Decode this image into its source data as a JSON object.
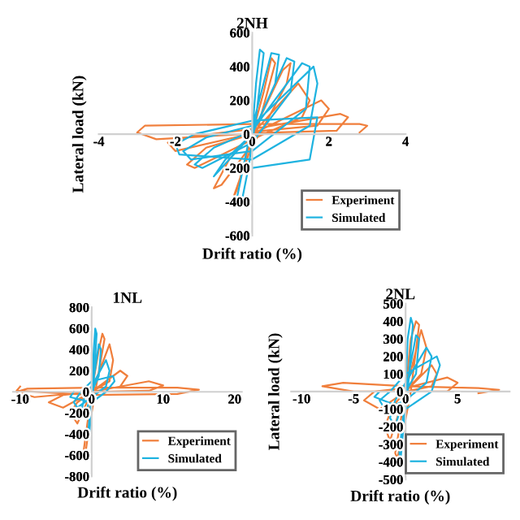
{
  "chart_data": [
    {
      "type": "line",
      "title": "2NH",
      "xlabel": "Drift ratio (%)",
      "ylabel": "Lateral load (kN)",
      "xlim": [
        -4,
        4
      ],
      "ylim": [
        -600,
        600
      ],
      "xticks": [
        -4,
        -2,
        0,
        2,
        4
      ],
      "yticks": [
        -600,
        -400,
        -200,
        0,
        200,
        400,
        600
      ],
      "legend": "bottom right",
      "series": [
        {
          "name": "Experiment",
          "color": "#f07f3c",
          "x": [
            0,
            0.3,
            0.5,
            0.6,
            0.1,
            -0.3,
            -0.5,
            -0.4,
            0,
            0.8,
            1.0,
            0.9,
            0.2,
            -0.8,
            -1.0,
            -0.6,
            0,
            1.2,
            1.5,
            1.3,
            0.3,
            -1.5,
            -1.7,
            -1.2,
            0,
            1.8,
            2.0,
            1.7,
            0.3,
            -2.0,
            -2.2,
            -1.5,
            0,
            2.3,
            2.5,
            2.2,
            0.5,
            -2.5,
            -3.0,
            -2.8,
            0,
            2.8,
            3.0,
            2.8
          ],
          "values": [
            0,
            250,
            450,
            420,
            0,
            -250,
            -380,
            -330,
            0,
            380,
            420,
            300,
            0,
            -300,
            -320,
            -150,
            0,
            300,
            200,
            100,
            0,
            -200,
            -180,
            -80,
            0,
            200,
            150,
            50,
            20,
            -100,
            -50,
            -10,
            30,
            120,
            100,
            20,
            10,
            -30,
            10,
            50,
            60,
            60,
            50,
            10
          ]
        },
        {
          "name": "Simulated",
          "color": "#1fb3e0",
          "x": [
            0,
            0.1,
            0.2,
            0.3,
            0.1,
            -0.1,
            -0.3,
            -0.4,
            -0.1,
            0.5,
            0.7,
            0.6,
            0,
            -0.8,
            -1.0,
            -0.7,
            0,
            0.9,
            1.1,
            1.0,
            0,
            -1.3,
            -1.5,
            -1.0,
            0,
            1.3,
            1.5,
            1.4,
            0,
            -1.6,
            -1.8,
            -1.2,
            0,
            1.6,
            1.7,
            1.5,
            0,
            -1.9,
            -2.0,
            -1.5,
            0,
            1.7,
            1.5,
            0
          ],
          "values": [
            0,
            300,
            500,
            480,
            100,
            -200,
            -430,
            -380,
            -50,
            480,
            470,
            300,
            0,
            -200,
            -250,
            -150,
            0,
            450,
            430,
            250,
            -50,
            -200,
            -180,
            -80,
            20,
            420,
            400,
            150,
            -100,
            -150,
            -100,
            -20,
            50,
            400,
            300,
            50,
            -150,
            -120,
            -60,
            0,
            80,
            100,
            -150,
            -200
          ]
        }
      ]
    },
    {
      "type": "line",
      "title": "1NL",
      "xlabel": "Drift ratio (%)",
      "xlim": [
        -11,
        21
      ],
      "ylim": [
        -800,
        800
      ],
      "xticks": [
        -10,
        0,
        10,
        20
      ],
      "yticks": [
        -800,
        -600,
        -400,
        -200,
        0,
        200,
        400,
        600,
        800
      ],
      "legend": "bottom right",
      "series": [
        {
          "name": "Experiment",
          "color": "#f07f3c",
          "x": [
            0,
            1,
            1.5,
            1.8,
            0.5,
            -0.5,
            -1,
            -1.2,
            0,
            2.5,
            3,
            2.5,
            0,
            -2,
            -3,
            -2,
            0,
            4,
            5,
            4,
            0,
            -4,
            -6,
            -4,
            0,
            8,
            10,
            8,
            0,
            -8,
            -10.5,
            -9,
            0,
            12,
            15,
            12,
            0,
            -10.5,
            -10
          ],
          "values": [
            0,
            400,
            550,
            500,
            0,
            -400,
            -650,
            -600,
            0,
            450,
            300,
            100,
            0,
            -300,
            -200,
            -100,
            0,
            200,
            150,
            50,
            0,
            -150,
            -100,
            -30,
            0,
            100,
            60,
            10,
            0,
            -50,
            0,
            30,
            40,
            40,
            20,
            -20,
            -30,
            10,
            50
          ]
        },
        {
          "name": "Simulated",
          "color": "#1fb3e0",
          "x": [
            0,
            0.3,
            0.5,
            0.7,
            0.2,
            -0.2,
            -0.4,
            -0.5,
            0,
            1,
            1.3,
            1,
            0,
            -1,
            -1.5,
            -1,
            0,
            2,
            2.5,
            2,
            0,
            -2,
            -2.5,
            -1.5,
            0,
            3,
            3.2,
            2,
            0,
            -3,
            -2.5
          ],
          "values": [
            0,
            400,
            600,
            550,
            0,
            -300,
            -450,
            -400,
            0,
            450,
            400,
            150,
            0,
            -250,
            -200,
            -50,
            50,
            300,
            200,
            50,
            -50,
            -150,
            -100,
            0,
            100,
            150,
            100,
            0,
            -100,
            -50,
            0
          ]
        }
      ]
    },
    {
      "type": "line",
      "title": "2NL",
      "xlabel": "Drift ratio (%)",
      "ylabel": "Lateral load (kN)",
      "xlim": [
        -11,
        10
      ],
      "ylim": [
        -500,
        500
      ],
      "xticks": [
        -10,
        -5,
        0,
        5
      ],
      "yticks": [
        -500,
        -400,
        -300,
        -200,
        -100,
        0,
        100,
        200,
        300,
        400,
        500
      ],
      "legend": "bottom right",
      "series": [
        {
          "name": "Experiment",
          "color": "#f07f3c",
          "x": [
            0,
            0.5,
            1,
            1.3,
            0.5,
            -0.3,
            -0.8,
            -1,
            0,
            1.5,
            2,
            1.5,
            0,
            -1.5,
            -2,
            -1.2,
            0,
            2.5,
            3,
            2.5,
            0,
            -2.5,
            -4,
            -3,
            0,
            4,
            5,
            4,
            0,
            -5,
            -8,
            -6,
            0,
            7,
            9,
            7
          ],
          "values": [
            0,
            300,
            400,
            380,
            0,
            -250,
            -380,
            -350,
            0,
            350,
            250,
            100,
            0,
            -280,
            -200,
            -80,
            0,
            150,
            100,
            30,
            0,
            -100,
            -50,
            0,
            20,
            80,
            50,
            0,
            0,
            0,
            30,
            50,
            30,
            20,
            10,
            -10
          ]
        },
        {
          "name": "Simulated",
          "color": "#1fb3e0",
          "x": [
            0,
            0.2,
            0.5,
            0.7,
            0.2,
            -0.2,
            -0.5,
            -0.6,
            0,
            1,
            1.3,
            1,
            0,
            -1,
            -1.5,
            -1,
            0,
            2,
            2.5,
            2,
            0,
            -2,
            -2.5,
            -1.5,
            0,
            3,
            3.3,
            2.5,
            0,
            -3,
            -2.5
          ],
          "values": [
            0,
            300,
            420,
            380,
            0,
            -200,
            -400,
            -350,
            0,
            320,
            300,
            100,
            0,
            -200,
            -150,
            -50,
            50,
            250,
            200,
            50,
            -50,
            -100,
            -50,
            0,
            100,
            200,
            150,
            0,
            -100,
            -30,
            0
          ]
        }
      ]
    }
  ]
}
